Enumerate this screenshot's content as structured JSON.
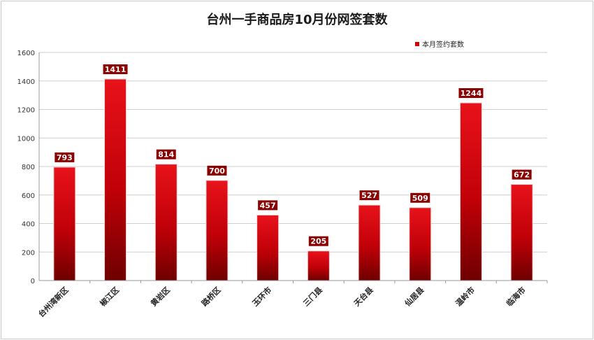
{
  "chart_data": {
    "type": "bar",
    "title": "台州一手商品房10月份网签套数",
    "categories": [
      "台州湾新区",
      "椒江区",
      "黄岩区",
      "路桥区",
      "玉环市",
      "三门县",
      "天台县",
      "仙居县",
      "温岭市",
      "临海市"
    ],
    "series": [
      {
        "name": "本月签约套数",
        "values": [
          793,
          1411,
          814,
          700,
          457,
          205,
          527,
          509,
          1244,
          672
        ]
      }
    ],
    "ylim": [
      0,
      1600
    ],
    "yticks": [
      0,
      200,
      400,
      600,
      800,
      1000,
      1200,
      1400,
      1600
    ],
    "grid": true,
    "legend_position": "top-right",
    "bar_color_top": "#e8121a",
    "bar_color_bottom": "#6e0000",
    "label_box_color": "#8a0000"
  }
}
